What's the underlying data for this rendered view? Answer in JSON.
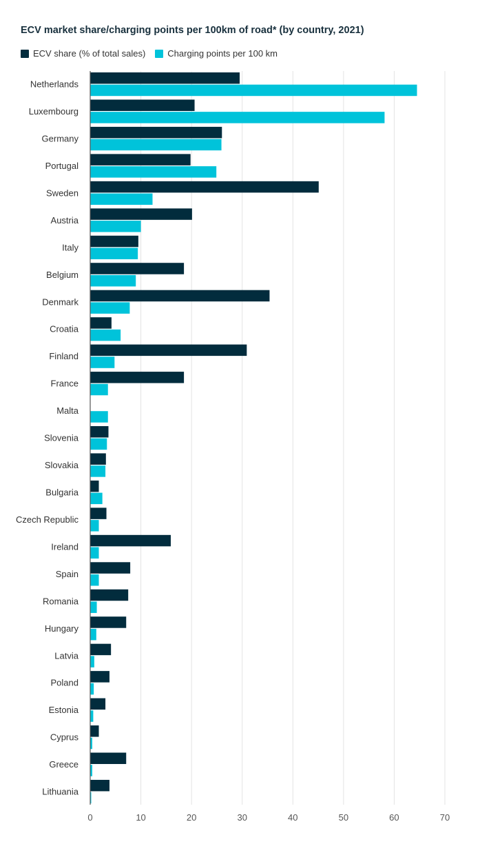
{
  "chart_data": {
    "type": "bar",
    "orientation": "horizontal",
    "title": "ECV market share/charging points per 100km of road* (by country, 2021)",
    "xlabel": "",
    "ylabel": "",
    "xlim": [
      0,
      70
    ],
    "xticks": [
      "0",
      "10",
      "20",
      "30",
      "40",
      "50",
      "60",
      "70"
    ],
    "grid": true,
    "legend_position": "top-left",
    "categories": [
      "Netherlands",
      "Luxembourg",
      "Germany",
      "Portugal",
      "Sweden",
      "Austria",
      "Italy",
      "Belgium",
      "Denmark",
      "Croatia",
      "Finland",
      "France",
      "Malta",
      "Slovenia",
      "Slovakia",
      "Bulgaria",
      "Czech Republic",
      "Ireland",
      "Spain",
      "Romania",
      "Hungary",
      "Latvia",
      "Poland",
      "Estonia",
      "Cyprus",
      "Greece",
      "Lithuania"
    ],
    "series": [
      {
        "name": "ECV share (% of total sales)",
        "color": "#022c3d",
        "values": [
          29.5,
          20.6,
          26.0,
          19.8,
          45.1,
          20.1,
          9.5,
          18.5,
          35.4,
          4.2,
          30.9,
          18.5,
          0,
          3.6,
          3.1,
          1.7,
          3.2,
          15.9,
          7.9,
          7.5,
          7.1,
          4.1,
          3.8,
          3.0,
          1.7,
          7.1,
          3.8
        ]
      },
      {
        "name": "Charging points per 100 km",
        "color": "#00c3da",
        "values": [
          64.5,
          58.1,
          25.9,
          24.9,
          12.3,
          10.0,
          9.4,
          9.0,
          7.8,
          6.0,
          4.8,
          3.5,
          3.5,
          3.3,
          3.0,
          2.4,
          1.7,
          1.7,
          1.7,
          1.3,
          1.2,
          0.8,
          0.7,
          0.6,
          0.4,
          0.4,
          0.2
        ]
      }
    ]
  }
}
